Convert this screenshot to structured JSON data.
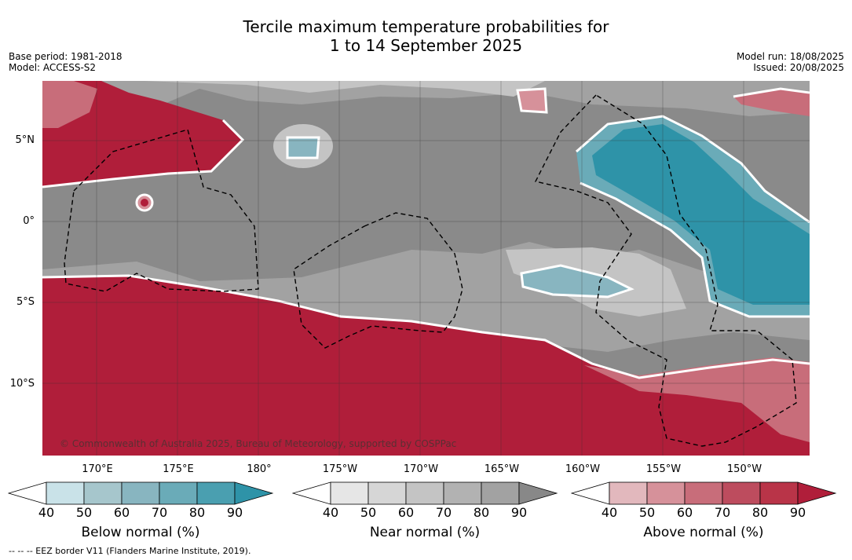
{
  "header": {
    "title_line1": "Tercile maximum temperature probabilities for",
    "title_line2": "1 to 14 September 2025",
    "base_period": "Base period: 1981-2018",
    "model": "Model: ACCESS-S2",
    "model_run": "Model run: 18/08/2025",
    "issued": "Issued: 20/08/2025"
  },
  "map": {
    "lat_labels": [
      "5°N",
      "0°",
      "5°S",
      "10°S"
    ],
    "lon_labels": [
      "170°E",
      "175°E",
      "180°",
      "175°W",
      "170°W",
      "165°W",
      "160°W",
      "155°W",
      "150°W"
    ],
    "copyright": "© Commonwealth of Australia 2025, Bureau of Meteorology, supported by COSPPac",
    "colors": {
      "near_base": "#8a8a8a",
      "above_base": "#b01e3a",
      "below_base": "#2e93a8",
      "eez_line": "#000000"
    }
  },
  "colorbars": {
    "ticks": [
      "40",
      "50",
      "60",
      "70",
      "80",
      "90"
    ],
    "below": {
      "label": "Below normal (%)",
      "colors": [
        "#ffffff",
        "#c9e2e8",
        "#a6c6cc",
        "#88b5c0",
        "#6aabb8",
        "#4a9fb0",
        "#2e93a8"
      ]
    },
    "near": {
      "label": "Near normal (%)",
      "colors": [
        "#ffffff",
        "#e6e6e6",
        "#d6d6d6",
        "#c4c4c4",
        "#b2b2b2",
        "#a2a2a2",
        "#888888"
      ]
    },
    "above": {
      "label": "Above normal (%)",
      "colors": [
        "#ffffff",
        "#e2b8bd",
        "#d6919a",
        "#c86d7a",
        "#bd4c5e",
        "#b93448",
        "#b01e3a"
      ]
    }
  },
  "footnote": "--  --  -- EEZ border V11 (Flanders Marine Institute, 2019)."
}
